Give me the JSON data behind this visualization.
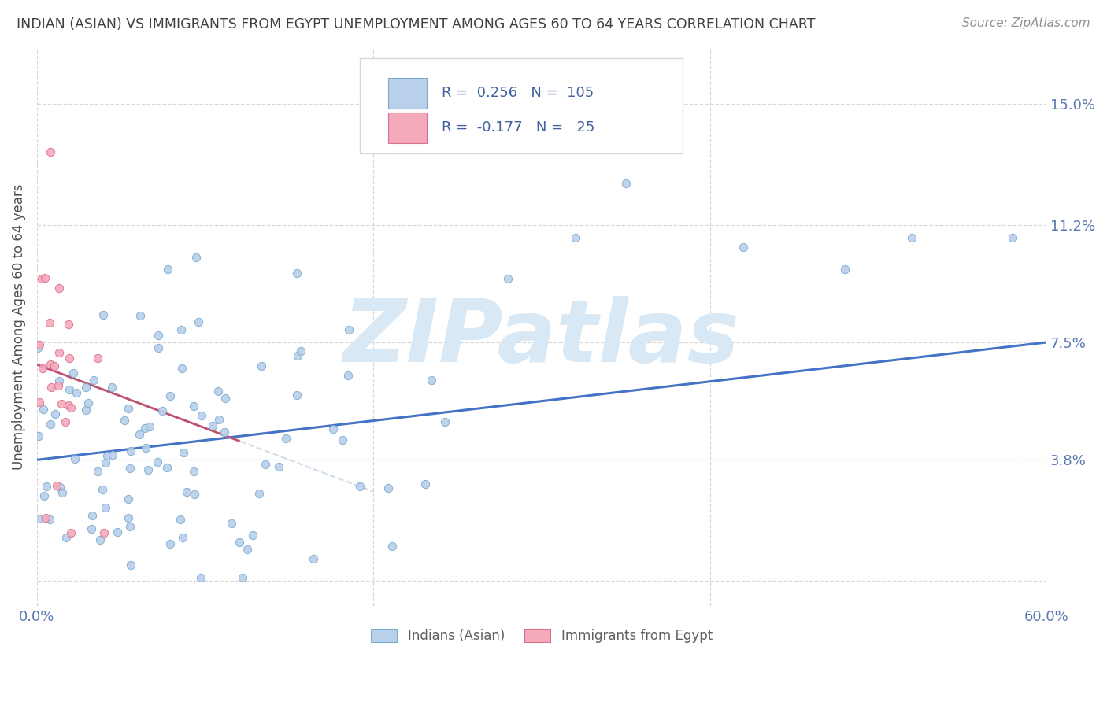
{
  "title": "INDIAN (ASIAN) VS IMMIGRANTS FROM EGYPT UNEMPLOYMENT AMONG AGES 60 TO 64 YEARS CORRELATION CHART",
  "source": "Source: ZipAtlas.com",
  "ylabel": "Unemployment Among Ages 60 to 64 years",
  "ytick_vals": [
    0.0,
    0.038,
    0.075,
    0.112,
    0.15
  ],
  "ytick_labels": [
    "",
    "3.8%",
    "7.5%",
    "11.2%",
    "15.0%"
  ],
  "xtick_vals": [
    0.0,
    0.2,
    0.4,
    0.6
  ],
  "xtick_labels": [
    "0.0%",
    "",
    "",
    "60.0%"
  ],
  "xlim": [
    0.0,
    0.6
  ],
  "ylim": [
    -0.008,
    0.168
  ],
  "legend1_R": "0.256",
  "legend1_N": "105",
  "legend2_R": "-0.177",
  "legend2_N": "25",
  "blue_face": "#b8d0ea",
  "blue_edge": "#7aaace",
  "blue_line_color": "#4472c4",
  "pink_face": "#f4aabb",
  "pink_edge": "#d87090",
  "pink_line_color": "#c05070",
  "pink_trend_color": "#d0dce8",
  "watermark_color": "#d8e8f4",
  "background_color": "#ffffff",
  "grid_color": "#d8d8d8",
  "title_color": "#404040",
  "source_color": "#909090",
  "axis_label_color": "#5878b0",
  "legend_text_color": "#4060a0",
  "ylabel_color": "#505050",
  "legend_box_color": "#d0d8e0",
  "bottom_legend_text_color": "#606060",
  "blue_trend_x": [
    0.0,
    0.6
  ],
  "blue_trend_y": [
    0.038,
    0.075
  ],
  "pink_trend_x": [
    0.0,
    0.2
  ],
  "pink_trend_y": [
    0.068,
    0.028
  ]
}
